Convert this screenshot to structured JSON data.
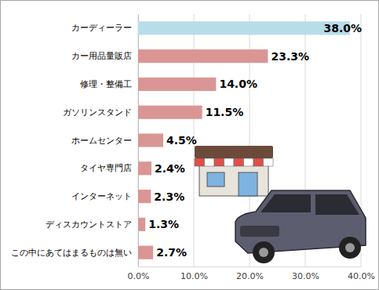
{
  "chart_data": {
    "type": "bar",
    "orientation": "horizontal",
    "categories": [
      "カーディーラー",
      "カー用品量販店",
      "修理・整備工",
      "ガソリンスタンド",
      "ホームセンター",
      "タイヤ専門店",
      "インターネット",
      "ディスカウントストア",
      "この中にあてはまるものは無い"
    ],
    "values": [
      38.0,
      23.3,
      14.0,
      11.5,
      4.5,
      2.4,
      2.3,
      1.3,
      2.7
    ],
    "value_labels": [
      "38.0%",
      "23.3%",
      "14.0%",
      "11.5%",
      "4.5%",
      "2.4%",
      "2.3%",
      "1.3%",
      "2.7%"
    ],
    "colors": [
      "#b7dde8",
      "#d99694",
      "#d99694",
      "#d99694",
      "#d99694",
      "#d99694",
      "#d99694",
      "#d99694",
      "#d99694"
    ],
    "xlim": [
      0,
      40
    ],
    "xticks": [
      {
        "value": 0,
        "label": "0.0%"
      },
      {
        "value": 10,
        "label": "10.0%"
      },
      {
        "value": 20,
        "label": "20.0%"
      },
      {
        "value": 30,
        "label": "30.0%"
      },
      {
        "value": 40,
        "label": "40.0%"
      }
    ],
    "grid": true,
    "data_labels": true
  }
}
